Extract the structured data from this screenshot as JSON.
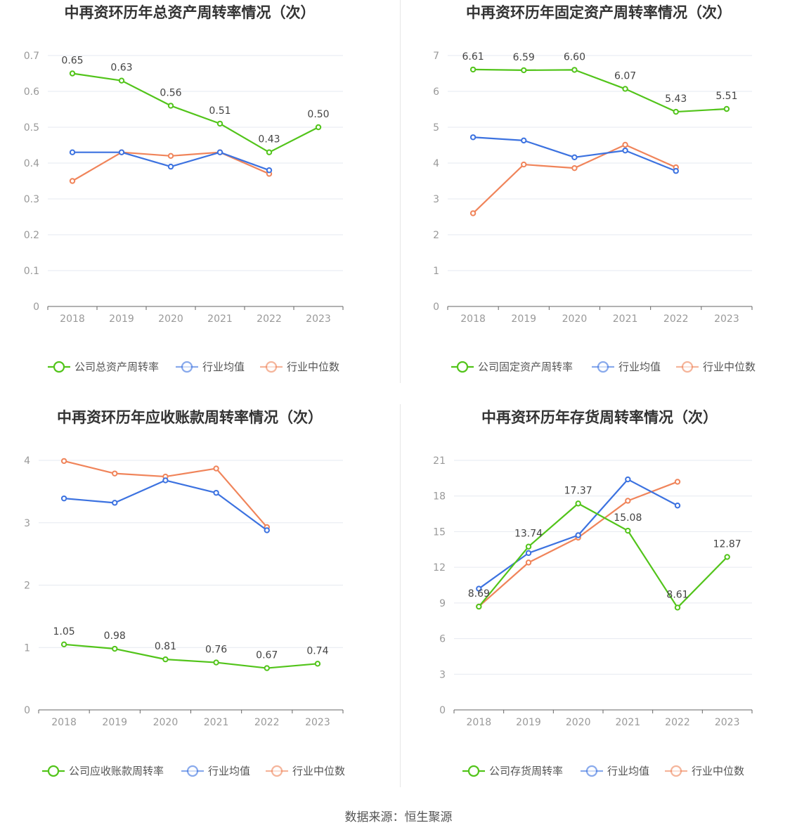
{
  "footer": "数据来源：恒生聚源",
  "colors": {
    "company": "#52c41a",
    "avg": "#3c72e0",
    "median": "#f0845a"
  },
  "chart_data": [
    {
      "type": "line",
      "title": "中再资环历年总资产周转率情况（次）",
      "categories": [
        "2018",
        "2019",
        "2020",
        "2021",
        "2022",
        "2023"
      ],
      "ylim": [
        0,
        0.7
      ],
      "yticks": [
        "0",
        "0.1",
        "0.2",
        "0.3",
        "0.4",
        "0.5",
        "0.6",
        "0.7"
      ],
      "grid": true,
      "legend_position": "bottom",
      "series": [
        {
          "name": "公司总资产周转率",
          "key": "company",
          "values": [
            0.65,
            0.63,
            0.56,
            0.51,
            0.43,
            0.5
          ],
          "labels": [
            "0.65",
            "0.63",
            "0.56",
            "0.51",
            "0.43",
            "0.50"
          ]
        },
        {
          "name": "行业均值",
          "key": "avg",
          "values": [
            0.43,
            0.43,
            0.39,
            0.43,
            0.38,
            null
          ]
        },
        {
          "name": "行业中位数",
          "key": "median",
          "values": [
            0.35,
            0.43,
            0.42,
            0.43,
            0.37,
            null
          ]
        }
      ]
    },
    {
      "type": "line",
      "title": "中再资环历年固定资产周转率情况（次）",
      "categories": [
        "2018",
        "2019",
        "2020",
        "2021",
        "2022",
        "2023"
      ],
      "ylim": [
        0,
        7
      ],
      "yticks": [
        "0",
        "1",
        "2",
        "3",
        "4",
        "5",
        "6",
        "7"
      ],
      "grid": true,
      "legend_position": "bottom",
      "series": [
        {
          "name": "公司固定资产周转率",
          "key": "company",
          "values": [
            6.61,
            6.59,
            6.6,
            6.07,
            5.43,
            5.51
          ],
          "labels": [
            "6.61",
            "6.59",
            "6.60",
            "6.07",
            "5.43",
            "5.51"
          ]
        },
        {
          "name": "行业均值",
          "key": "avg",
          "values": [
            4.72,
            4.63,
            4.16,
            4.35,
            3.78,
            null
          ]
        },
        {
          "name": "行业中位数",
          "key": "median",
          "values": [
            2.6,
            3.96,
            3.86,
            4.51,
            3.88,
            null
          ]
        }
      ]
    },
    {
      "type": "line",
      "title": "中再资环历年应收账款周转率情况（次）",
      "categories": [
        "2018",
        "2019",
        "2020",
        "2021",
        "2022",
        "2023"
      ],
      "ylim": [
        0,
        4
      ],
      "yticks": [
        "0",
        "1",
        "2",
        "3",
        "4"
      ],
      "grid": true,
      "legend_position": "bottom",
      "series": [
        {
          "name": "公司应收账款周转率",
          "key": "company",
          "values": [
            1.05,
            0.98,
            0.81,
            0.76,
            0.67,
            0.74
          ],
          "labels": [
            "1.05",
            "0.98",
            "0.81",
            "0.76",
            "0.67",
            "0.74"
          ]
        },
        {
          "name": "行业均值",
          "key": "avg",
          "values": [
            3.39,
            3.32,
            3.68,
            3.48,
            2.88,
            null
          ]
        },
        {
          "name": "行业中位数",
          "key": "median",
          "values": [
            3.99,
            3.79,
            3.74,
            3.87,
            2.93,
            null
          ]
        }
      ]
    },
    {
      "type": "line",
      "title": "中再资环历年存货周转率情况（次）",
      "categories": [
        "2018",
        "2019",
        "2020",
        "2021",
        "2022",
        "2023"
      ],
      "ylim": [
        0,
        21
      ],
      "yticks": [
        "0",
        "3",
        "6",
        "9",
        "12",
        "15",
        "18",
        "21"
      ],
      "grid": true,
      "legend_position": "bottom",
      "series": [
        {
          "name": "公司存货周转率",
          "key": "company",
          "values": [
            8.69,
            13.74,
            17.37,
            15.08,
            8.61,
            12.87
          ],
          "labels": [
            "8.69",
            "13.74",
            "17.37",
            "15.08",
            "8.61",
            "12.87"
          ]
        },
        {
          "name": "行业均值",
          "key": "avg",
          "values": [
            10.2,
            13.2,
            14.7,
            19.4,
            17.2,
            null
          ]
        },
        {
          "name": "行业中位数",
          "key": "median",
          "values": [
            8.7,
            12.4,
            14.5,
            17.6,
            19.2,
            null
          ]
        }
      ]
    }
  ]
}
